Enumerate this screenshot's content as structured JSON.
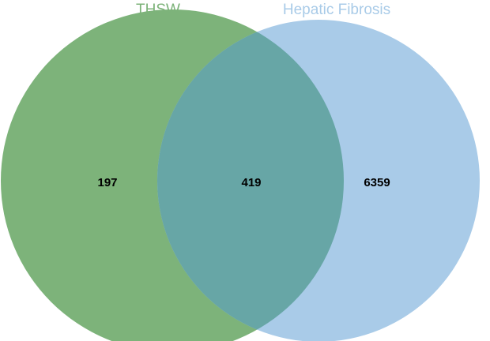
{
  "diagram": {
    "type": "venn",
    "sets": [
      {
        "name": "THSW",
        "color": "#7db37a",
        "label_color": "#7db37a"
      },
      {
        "name": "Hepatic Fibrosis",
        "color": "#a9cbe8",
        "label_color": "#a9cbe8"
      }
    ],
    "overlap_color": "#67a6a6",
    "counts": {
      "only_a": "197",
      "intersection": "419",
      "only_b": "6359"
    }
  }
}
